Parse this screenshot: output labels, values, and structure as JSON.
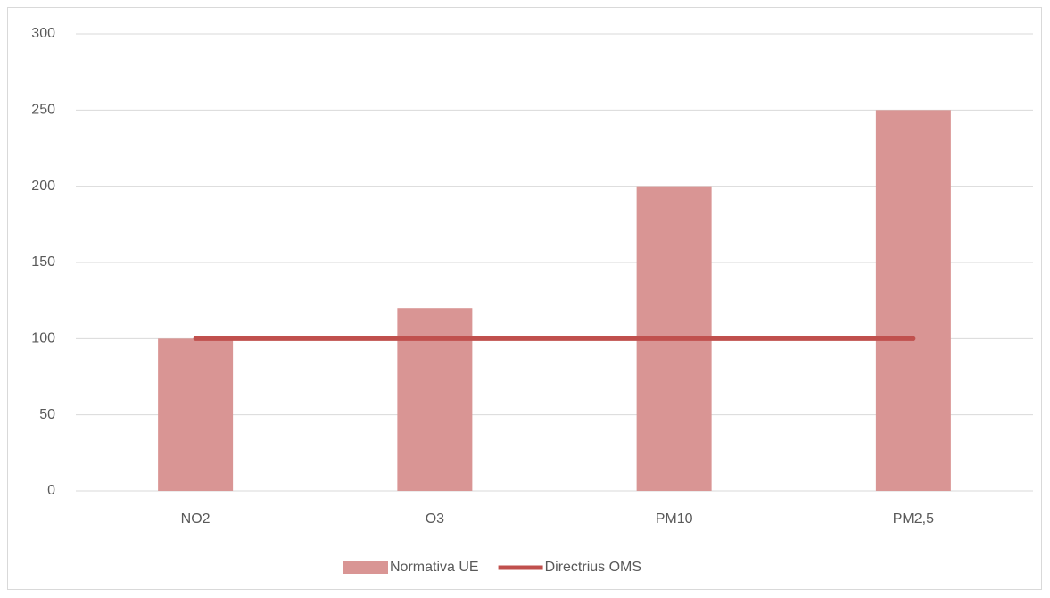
{
  "chart_data": {
    "type": "bar",
    "categories": [
      "NO2",
      "O3",
      "PM10",
      "PM2,5"
    ],
    "series": [
      {
        "name": "Normativa UE",
        "type": "bar",
        "color": "#d99594",
        "values": [
          100,
          120,
          200,
          250
        ]
      },
      {
        "name": "Directrius OMS",
        "type": "line",
        "color": "#c0504d",
        "values": [
          100,
          100,
          100,
          100
        ]
      }
    ],
    "ylim": [
      0,
      300
    ],
    "yticks": [
      0,
      50,
      100,
      150,
      200,
      250,
      300
    ],
    "grid": true,
    "legend": "bottom"
  }
}
